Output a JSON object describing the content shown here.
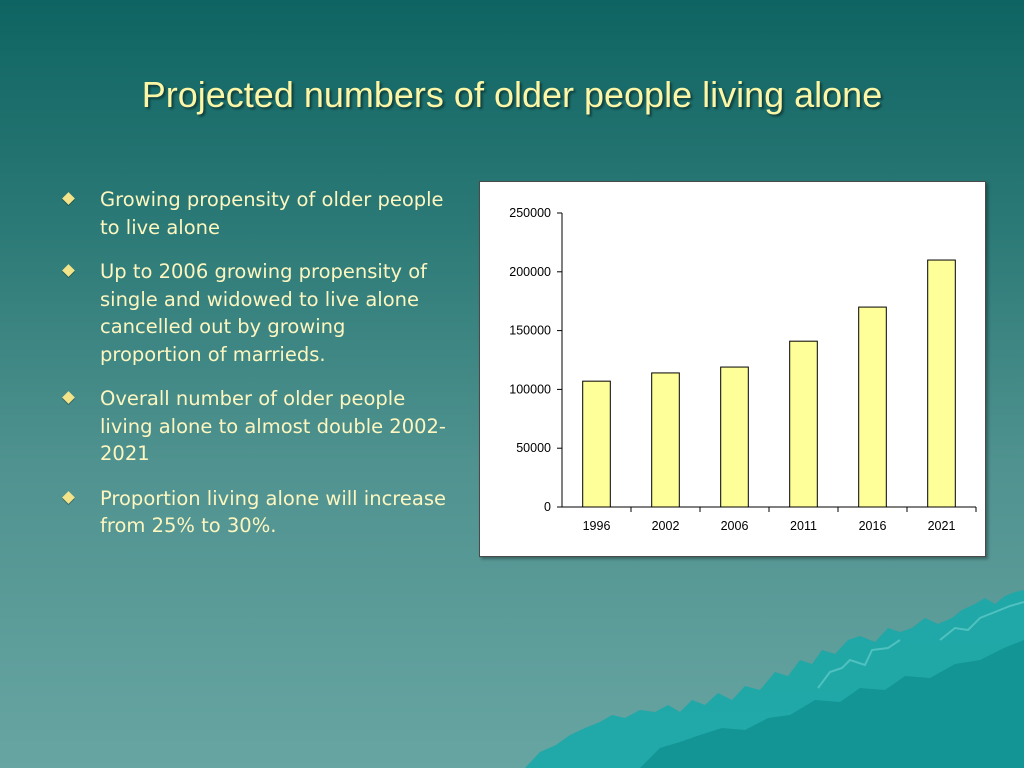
{
  "slide": {
    "title": "Projected numbers of older people living alone",
    "bullets": [
      "Growing propensity of older people to live alone",
      "Up to 2006 growing propensity of single and widowed to live alone cancelled out by growing proportion of marrieds.",
      "Overall number of older people living alone to almost double 2002-2021",
      "Proportion living alone will increase from 25% to 30%."
    ],
    "colors": {
      "title_text": "#fdf6a6",
      "bullet_text": "#fdf6c0",
      "bullet_marker": "#f3e48a",
      "background_top": "#0e6462",
      "background_bottom": "#67a5a2",
      "mountain": "#1aa8a8"
    }
  },
  "chart_data": {
    "type": "bar",
    "categories": [
      "1996",
      "2002",
      "2006",
      "2011",
      "2016",
      "2021"
    ],
    "values": [
      107000,
      114000,
      119000,
      141000,
      170000,
      210000
    ],
    "ylim": [
      0,
      250000
    ],
    "yticks": [
      "0",
      "50000",
      "100000",
      "150000",
      "200000",
      "250000"
    ],
    "title": "",
    "xlabel": "",
    "ylabel": "",
    "bar_color": "#ffff99",
    "bar_edge_color": "#000000",
    "grid": false,
    "legend": "none"
  }
}
